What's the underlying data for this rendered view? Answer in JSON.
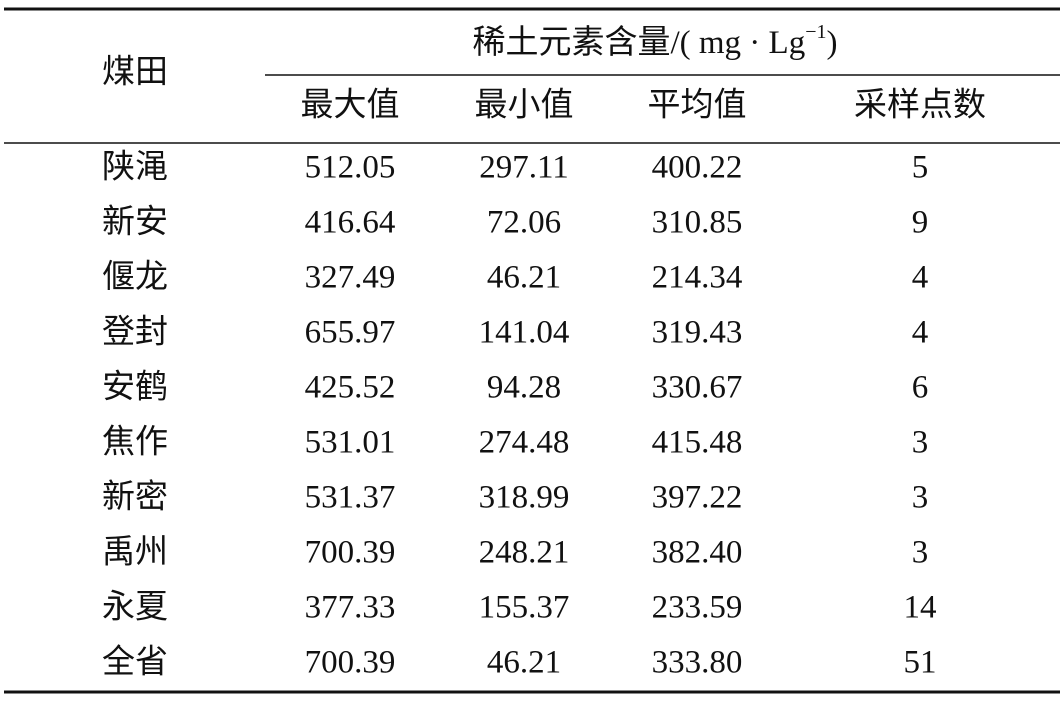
{
  "table": {
    "row_header": "煤田",
    "group_header": {
      "text": "稀土元素含量/( mg · Lg",
      "superscript": "−1",
      "close": ")"
    },
    "columns": [
      "最大值",
      "最小值",
      "平均值",
      "采样点数"
    ],
    "rows": [
      [
        "陕渑",
        "512.05",
        "297.11",
        "400.22",
        "5"
      ],
      [
        "新安",
        "416.64",
        "72.06",
        "310.85",
        "9"
      ],
      [
        "偃龙",
        "327.49",
        "46.21",
        "214.34",
        "4"
      ],
      [
        "登封",
        "655.97",
        "141.04",
        "319.43",
        "4"
      ],
      [
        "安鹤",
        "425.52",
        "94.28",
        "330.67",
        "6"
      ],
      [
        "焦作",
        "531.01",
        "274.48",
        "415.48",
        "3"
      ],
      [
        "新密",
        "531.37",
        "318.99",
        "397.22",
        "3"
      ],
      [
        "禹州",
        "700.39",
        "248.21",
        "382.40",
        "3"
      ],
      [
        "永夏",
        "377.33",
        "155.37",
        "233.59",
        "14"
      ],
      [
        "全省",
        "700.39",
        "46.21",
        "333.80",
        "51"
      ]
    ]
  }
}
